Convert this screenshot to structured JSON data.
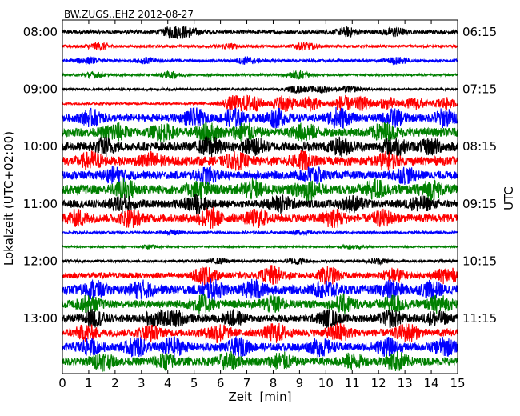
{
  "chart_data": {
    "type": "line",
    "title": "BW.ZUGS..EHZ 2012-08-27",
    "xlabel": "Zeit  [min]",
    "ylabel_left": "Lokalzeit (UTC+02:00)",
    "ylabel_right": "UTC",
    "xlim": [
      0,
      15
    ],
    "x_ticks": [
      "0",
      "1",
      "2",
      "3",
      "4",
      "5",
      "6",
      "7",
      "8",
      "9",
      "10",
      "11",
      "12",
      "13",
      "14",
      "15"
    ],
    "left_ticks": [
      {
        "row": 0,
        "label": "08:00"
      },
      {
        "row": 4,
        "label": "09:00"
      },
      {
        "row": 8,
        "label": "10:00"
      },
      {
        "row": 12,
        "label": "11:00"
      },
      {
        "row": 16,
        "label": "12:00"
      },
      {
        "row": 20,
        "label": "13:00"
      }
    ],
    "right_ticks": [
      {
        "row": 0,
        "label": "06:15"
      },
      {
        "row": 4,
        "label": "07:15"
      },
      {
        "row": 8,
        "label": "08:15"
      },
      {
        "row": 12,
        "label": "09:15"
      },
      {
        "row": 16,
        "label": "10:15"
      },
      {
        "row": 20,
        "label": "11:15"
      }
    ],
    "grid": false,
    "colors": [
      "#000000",
      "#ff0000",
      "#0000ff",
      "#008000"
    ],
    "traces": [
      {
        "row": 0,
        "color": "#000000",
        "amplitude": 0.25,
        "events": [
          [
            4.2,
            0.7
          ],
          [
            4.8,
            0.5
          ],
          [
            10.8,
            0.5
          ],
          [
            12.6,
            0.5
          ]
        ]
      },
      {
        "row": 1,
        "color": "#ff0000",
        "amplitude": 0.18,
        "events": [
          [
            1.4,
            0.45
          ],
          [
            6.3,
            0.3
          ],
          [
            9.2,
            0.45
          ]
        ]
      },
      {
        "row": 2,
        "color": "#0000ff",
        "amplitude": 0.18,
        "events": [
          [
            0.9,
            0.4
          ],
          [
            3.2,
            0.35
          ],
          [
            7.0,
            0.45
          ],
          [
            12.7,
            0.4
          ]
        ]
      },
      {
        "row": 3,
        "color": "#008000",
        "amplitude": 0.15,
        "events": [
          [
            1.2,
            0.35
          ],
          [
            4.1,
            0.4
          ],
          [
            9.0,
            0.5
          ]
        ]
      },
      {
        "row": 4,
        "color": "#000000",
        "amplitude": 0.16,
        "events": [
          [
            8.9,
            0.4
          ],
          [
            9.8,
            0.4
          ],
          [
            10.9,
            0.35
          ]
        ]
      },
      {
        "row": 5,
        "color": "#ff0000",
        "amplitude": 0.15,
        "events": [
          [
            6.5,
            1.0
          ],
          [
            7.2,
            1.1
          ],
          [
            8.4,
            1.2
          ],
          [
            9.4,
            1.0
          ],
          [
            10.6,
            1.0
          ],
          [
            11.4,
            0.9
          ],
          [
            12.4,
            0.8
          ],
          [
            13.4,
            0.8
          ],
          [
            14.5,
            0.8
          ]
        ]
      },
      {
        "row": 6,
        "color": "#0000ff",
        "amplitude": 0.5,
        "events": [
          [
            1.1,
            0.9
          ],
          [
            5.0,
            1.0
          ],
          [
            6.5,
            1.0
          ],
          [
            8.1,
            1.0
          ],
          [
            10.5,
            1.2
          ],
          [
            12.6,
            0.9
          ],
          [
            14.5,
            1.0
          ]
        ]
      },
      {
        "row": 7,
        "color": "#008000",
        "amplitude": 0.6,
        "events": [
          [
            2.0,
            0.9
          ],
          [
            3.8,
            0.8
          ],
          [
            5.5,
            1.0
          ],
          [
            6.9,
            0.9
          ],
          [
            9.2,
            0.9
          ],
          [
            12.2,
            1.0
          ]
        ]
      },
      {
        "row": 8,
        "color": "#000000",
        "amplitude": 0.6,
        "events": [
          [
            1.6,
            0.9
          ],
          [
            5.6,
            1.0
          ],
          [
            7.3,
            0.9
          ],
          [
            10.6,
            0.9
          ],
          [
            12.6,
            1.0
          ],
          [
            14.0,
            0.8
          ]
        ]
      },
      {
        "row": 9,
        "color": "#ff0000",
        "amplitude": 0.6,
        "events": [
          [
            1.1,
            0.9
          ],
          [
            3.4,
            0.8
          ],
          [
            6.6,
            0.8
          ],
          [
            9.1,
            0.9
          ],
          [
            12.3,
            0.8
          ]
        ]
      },
      {
        "row": 10,
        "color": "#0000ff",
        "amplitude": 0.55,
        "events": [
          [
            2.0,
            0.8
          ],
          [
            5.5,
            0.8
          ],
          [
            9.5,
            0.9
          ],
          [
            13.0,
            0.8
          ]
        ]
      },
      {
        "row": 11,
        "color": "#008000",
        "amplitude": 0.65,
        "events": [
          [
            2.4,
            1.0
          ],
          [
            5.2,
            0.8
          ],
          [
            7.2,
            0.9
          ],
          [
            9.3,
            1.1
          ],
          [
            11.9,
            1.0
          ],
          [
            14.0,
            0.9
          ]
        ]
      },
      {
        "row": 12,
        "color": "#000000",
        "amplitude": 0.55,
        "events": [
          [
            2.3,
            0.9
          ],
          [
            5.1,
            0.9
          ],
          [
            8.3,
            0.9
          ],
          [
            11.0,
            0.8
          ],
          [
            13.6,
            0.8
          ]
        ]
      },
      {
        "row": 13,
        "color": "#ff0000",
        "amplitude": 0.55,
        "events": [
          [
            0.6,
            0.8
          ],
          [
            2.6,
            0.9
          ],
          [
            5.6,
            1.1
          ],
          [
            7.4,
            0.9
          ],
          [
            10.3,
            1.0
          ],
          [
            12.2,
            0.8
          ]
        ]
      },
      {
        "row": 14,
        "color": "#0000ff",
        "amplitude": 0.15,
        "events": [
          [
            4.2,
            0.3
          ],
          [
            9.0,
            0.25
          ]
        ]
      },
      {
        "row": 15,
        "color": "#008000",
        "amplitude": 0.12,
        "events": [
          [
            3.3,
            0.25
          ],
          [
            11.0,
            0.25
          ]
        ]
      },
      {
        "row": 16,
        "color": "#000000",
        "amplitude": 0.18,
        "events": [
          [
            6.0,
            0.3
          ],
          [
            8.9,
            0.35
          ],
          [
            12.0,
            0.3
          ]
        ]
      },
      {
        "row": 17,
        "color": "#ff0000",
        "amplitude": 0.4,
        "events": [
          [
            5.4,
            1.0
          ],
          [
            8.0,
            1.1
          ],
          [
            10.1,
            1.0
          ],
          [
            12.6,
            0.8
          ],
          [
            14.6,
            0.9
          ]
        ]
      },
      {
        "row": 18,
        "color": "#0000ff",
        "amplitude": 0.6,
        "events": [
          [
            1.2,
            0.9
          ],
          [
            3.0,
            0.9
          ],
          [
            5.7,
            1.0
          ],
          [
            7.3,
            1.0
          ],
          [
            10.0,
            1.0
          ],
          [
            12.5,
            0.9
          ],
          [
            14.0,
            0.8
          ]
        ]
      },
      {
        "row": 19,
        "color": "#008000",
        "amplitude": 0.55,
        "events": [
          [
            1.0,
            0.8
          ],
          [
            5.3,
            0.9
          ],
          [
            8.0,
            0.9
          ],
          [
            10.7,
            0.9
          ],
          [
            12.6,
            0.9
          ],
          [
            14.3,
            0.9
          ]
        ]
      },
      {
        "row": 20,
        "color": "#000000",
        "amplitude": 0.5,
        "events": [
          [
            1.2,
            0.9
          ],
          [
            3.5,
            0.8
          ],
          [
            4.3,
            0.8
          ],
          [
            6.5,
            0.8
          ],
          [
            10.1,
            0.9
          ],
          [
            12.5,
            0.9
          ],
          [
            14.2,
            0.8
          ]
        ]
      },
      {
        "row": 21,
        "color": "#ff0000",
        "amplitude": 0.5,
        "events": [
          [
            0.9,
            0.8
          ],
          [
            3.3,
            0.8
          ],
          [
            5.9,
            1.0
          ],
          [
            8.1,
            1.0
          ],
          [
            10.5,
            1.0
          ],
          [
            13.1,
            1.0
          ]
        ]
      },
      {
        "row": 22,
        "color": "#0000ff",
        "amplitude": 0.55,
        "events": [
          [
            1.0,
            0.8
          ],
          [
            2.8,
            1.0
          ],
          [
            4.2,
            1.0
          ],
          [
            6.7,
            0.9
          ],
          [
            9.8,
            0.9
          ],
          [
            12.3,
            0.9
          ],
          [
            14.5,
            0.9
          ]
        ]
      },
      {
        "row": 23,
        "color": "#008000",
        "amplitude": 0.55,
        "events": [
          [
            1.5,
            0.9
          ],
          [
            3.9,
            0.8
          ],
          [
            6.3,
            0.9
          ],
          [
            8.3,
            0.9
          ],
          [
            11.0,
            0.8
          ],
          [
            12.7,
            1.0
          ]
        ]
      }
    ]
  }
}
